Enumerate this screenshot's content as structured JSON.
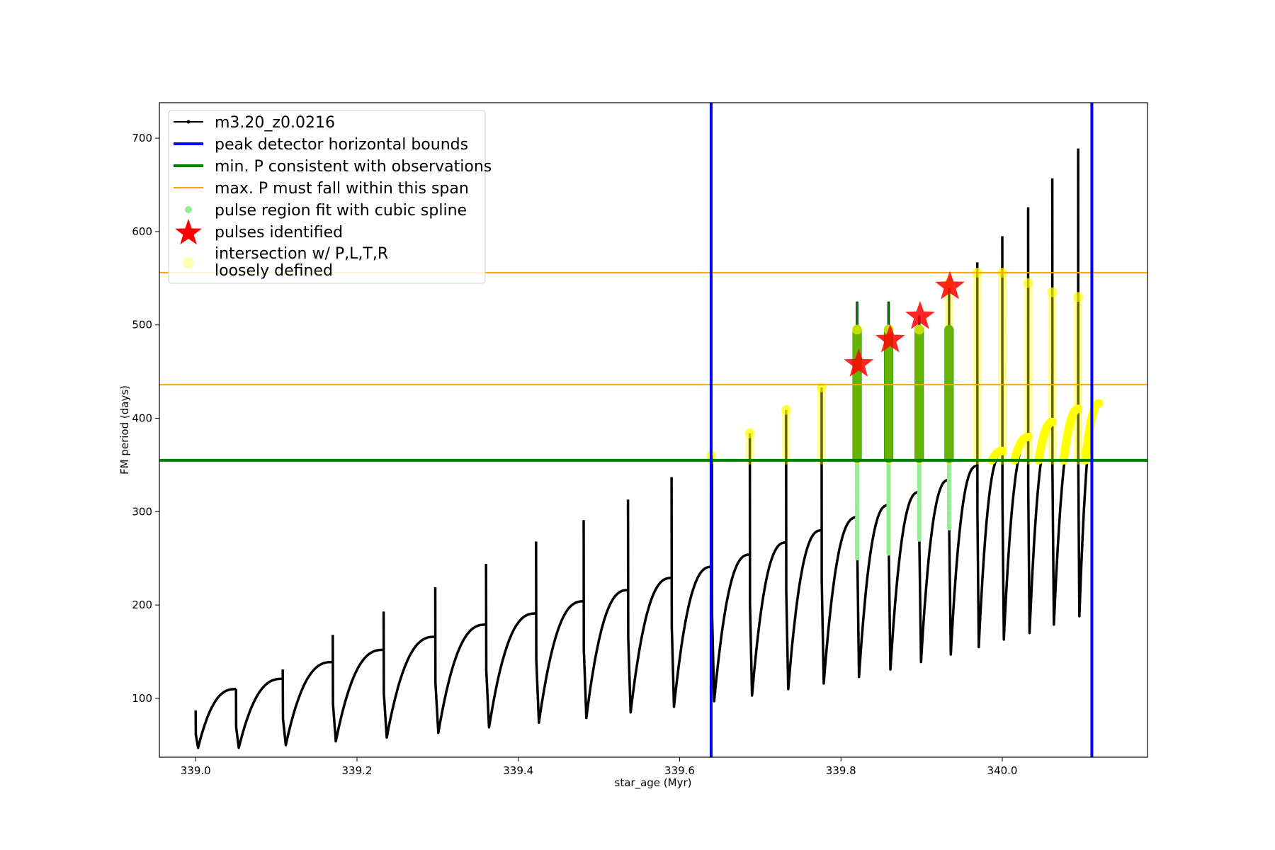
{
  "chart_data": {
    "type": "line",
    "xlabel": "star_age (Myr)",
    "ylabel": "FM period (days)",
    "xlim": [
      338.955,
      340.18
    ],
    "ylim": [
      37,
      738
    ],
    "xticks": [
      339.0,
      339.2,
      339.4,
      339.6,
      339.8,
      340.0
    ],
    "xtick_labels": [
      "339.0",
      "339.2",
      "339.4",
      "339.6",
      "339.8",
      "340.0"
    ],
    "yticks": [
      100,
      200,
      300,
      400,
      500,
      600,
      700
    ],
    "ytick_labels": [
      "100",
      "200",
      "300",
      "400",
      "500",
      "600",
      "700"
    ],
    "grid": false,
    "legend_position": "upper-left",
    "legend": [
      {
        "label": "m3.20_z0.0216",
        "kind": "line-marker",
        "color": "#000000"
      },
      {
        "label": "peak detector horizontal bounds",
        "kind": "line",
        "color": "#0000ff"
      },
      {
        "label": "min. P consistent with observations",
        "kind": "line",
        "color": "#008000"
      },
      {
        "label": "max. P must fall within this span",
        "kind": "line",
        "color": "#ffa500"
      },
      {
        "label": "pulse region fit with cubic spline",
        "kind": "dot",
        "color": "#90ee90"
      },
      {
        "label": "pulses identified",
        "kind": "star",
        "color": "#ff0000"
      },
      {
        "label": "intersection w/ P,L,T,R",
        "kind": "circle",
        "color": "#ffff00"
      },
      {
        "label": "loosely defined",
        "kind": "text",
        "color": ""
      }
    ],
    "vertical_lines": [
      {
        "x": 339.639,
        "color": "#0000ff",
        "name": "peak detector horizontal bounds"
      },
      {
        "x": 340.111,
        "color": "#0000ff",
        "name": "peak detector horizontal bounds"
      }
    ],
    "horizontal_lines": [
      {
        "y": 355,
        "color": "#008000",
        "name": "min. P consistent with observations"
      },
      {
        "y": 436,
        "color": "#ffa500",
        "name": "max. P must fall within this span"
      },
      {
        "y": 556,
        "color": "#ffa500",
        "name": "max. P must fall within this span"
      }
    ],
    "black_series": {
      "name": "m3.20_z0.0216",
      "color": "#000000",
      "cycles": [
        {
          "start": 339.0,
          "end": 339.05,
          "min": 47,
          "max": 110,
          "spike": 87
        },
        {
          "start": 339.05,
          "end": 339.108,
          "min": 47,
          "max": 121,
          "spike": 110
        },
        {
          "start": 339.108,
          "end": 339.17,
          "min": 50,
          "max": 139,
          "spike": 131
        },
        {
          "start": 339.17,
          "end": 339.233,
          "min": 54,
          "max": 152,
          "spike": 168
        },
        {
          "start": 339.233,
          "end": 339.297,
          "min": 58,
          "max": 166,
          "spike": 193
        },
        {
          "start": 339.297,
          "end": 339.36,
          "min": 63,
          "max": 179,
          "spike": 219
        },
        {
          "start": 339.36,
          "end": 339.422,
          "min": 69,
          "max": 191,
          "spike": 244
        },
        {
          "start": 339.422,
          "end": 339.481,
          "min": 74,
          "max": 204,
          "spike": 268
        },
        {
          "start": 339.481,
          "end": 339.536,
          "min": 79,
          "max": 216,
          "spike": 291
        },
        {
          "start": 339.536,
          "end": 339.59,
          "min": 85,
          "max": 229,
          "spike": 313
        },
        {
          "start": 339.59,
          "end": 339.64,
          "min": 91,
          "max": 241,
          "spike": 337
        },
        {
          "start": 339.64,
          "end": 339.687,
          "min": 97,
          "max": 254,
          "spike": 360
        },
        {
          "start": 339.687,
          "end": 339.732,
          "min": 103,
          "max": 267,
          "spike": 384
        },
        {
          "start": 339.732,
          "end": 339.776,
          "min": 110,
          "max": 280,
          "spike": 409
        },
        {
          "start": 339.776,
          "end": 339.82,
          "min": 116,
          "max": 294,
          "spike": 433
        },
        {
          "start": 339.82,
          "end": 339.859,
          "min": 123,
          "max": 307,
          "spike": 525
        },
        {
          "start": 339.859,
          "end": 339.897,
          "min": 131,
          "max": 321,
          "spike": 525
        },
        {
          "start": 339.897,
          "end": 339.934,
          "min": 139,
          "max": 334,
          "spike": 510
        },
        {
          "start": 339.934,
          "end": 339.969,
          "min": 147,
          "max": 349,
          "spike": 540
        },
        {
          "start": 339.969,
          "end": 340.0,
          "min": 155,
          "max": 362,
          "spike": 567
        },
        {
          "start": 340.0,
          "end": 340.032,
          "min": 163,
          "max": 376,
          "spike": 595
        },
        {
          "start": 340.032,
          "end": 340.062,
          "min": 170,
          "max": 390,
          "spike": 626
        },
        {
          "start": 340.062,
          "end": 340.094,
          "min": 179,
          "max": 405,
          "spike": 657
        },
        {
          "start": 340.094,
          "end": 340.12,
          "min": 188,
          "max": 418,
          "spike": 689
        }
      ]
    },
    "green_spline_regions": [
      {
        "x": 339.82,
        "low": 250,
        "high": 525
      },
      {
        "x": 339.859,
        "low": 255,
        "high": 525
      },
      {
        "x": 339.897,
        "low": 270,
        "high": 510
      },
      {
        "x": 339.934,
        "low": 282,
        "high": 495
      }
    ],
    "pulses_identified": [
      {
        "x": 339.822,
        "y": 458
      },
      {
        "x": 339.861,
        "y": 484
      },
      {
        "x": 339.898,
        "y": 509
      },
      {
        "x": 339.935,
        "y": 541
      }
    ],
    "yellow_markers": [
      {
        "x": 339.639,
        "low": 355,
        "high": 360
      },
      {
        "x": 339.687,
        "low": 355,
        "high": 384
      },
      {
        "x": 339.732,
        "low": 355,
        "high": 409
      },
      {
        "x": 339.776,
        "low": 355,
        "high": 433
      },
      {
        "x": 339.82,
        "low": 355,
        "high": 495
      },
      {
        "x": 339.859,
        "low": 355,
        "high": 495
      },
      {
        "x": 339.897,
        "low": 355,
        "high": 495
      },
      {
        "x": 339.934,
        "low": 355,
        "high": 545
      },
      {
        "x": 339.969,
        "low": 355,
        "high": 556
      },
      {
        "x": 340.0,
        "low": 355,
        "high": 556
      },
      {
        "x": 340.032,
        "low": 355,
        "high": 545
      },
      {
        "x": 340.062,
        "low": 355,
        "high": 535
      },
      {
        "x": 340.094,
        "low": 355,
        "high": 530
      }
    ],
    "yellow_arcs": [
      {
        "start": 339.987,
        "end": 340.0,
        "min": 355,
        "max": 365
      },
      {
        "start": 340.015,
        "end": 340.032,
        "min": 355,
        "max": 380
      },
      {
        "start": 340.045,
        "end": 340.062,
        "min": 355,
        "max": 396
      },
      {
        "start": 340.076,
        "end": 340.094,
        "min": 355,
        "max": 410
      },
      {
        "start": 340.103,
        "end": 340.12,
        "min": 355,
        "max": 416
      }
    ]
  }
}
